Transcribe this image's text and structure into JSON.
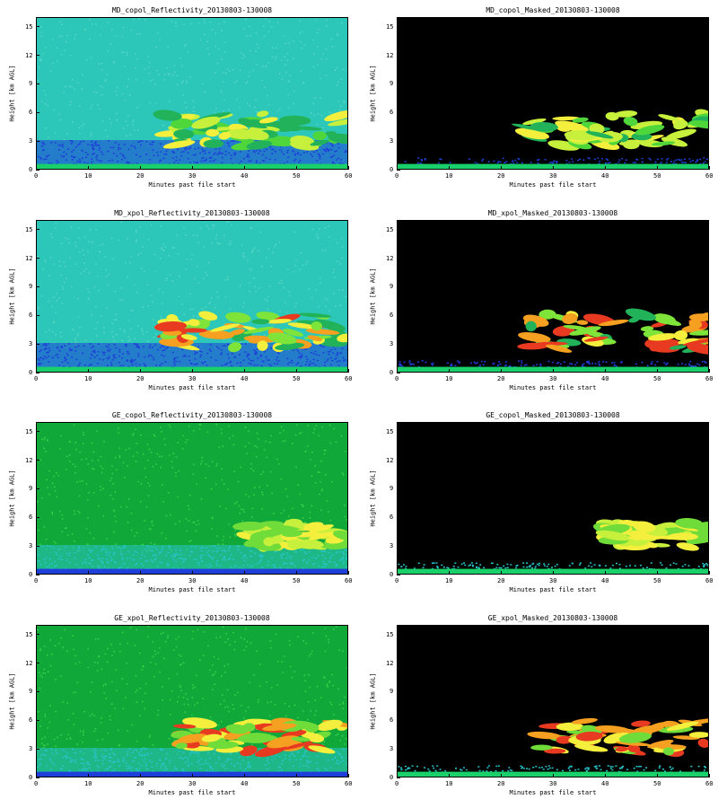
{
  "chart_data": [
    {
      "type": "heatmap",
      "title": "MD_copol_Reflectivity_20130803-130008",
      "xlabel": "Minutes past file start",
      "ylabel": "Height [km AGL]",
      "xlim": [
        0,
        60
      ],
      "ylim": [
        0,
        16
      ],
      "xticks": [
        "0",
        "10",
        "20",
        "30",
        "40",
        "50",
        "60"
      ],
      "yticks": [
        "0",
        "3",
        "6",
        "9",
        "12",
        "15"
      ],
      "background": "#2cc7b8",
      "echo": {
        "start_min": 25,
        "base_km": 2.6,
        "top_km": 6.0,
        "colors": [
          "#22b35a",
          "#4fd63a",
          "#c6f03c",
          "#f4ef3c"
        ]
      },
      "noise": "#1e3fd9",
      "ground": "#19d06a"
    },
    {
      "type": "heatmap",
      "title": "MD_copol_Masked_20130803-130008",
      "xlabel": "Minutes past file start",
      "ylabel": "Height [km AGL]",
      "xlim": [
        0,
        60
      ],
      "ylim": [
        0,
        16
      ],
      "xticks": [
        "0",
        "10",
        "20",
        "30",
        "40",
        "50",
        "60"
      ],
      "yticks": [
        "0",
        "3",
        "6",
        "9",
        "12",
        "15"
      ],
      "background": "#000000",
      "echo": {
        "start_min": 25,
        "base_km": 2.6,
        "top_km": 6.0,
        "colors": [
          "#22b35a",
          "#4fd63a",
          "#c6f03c",
          "#f4ef3c"
        ]
      },
      "noise": "#1e3fd9",
      "ground": "#19d06a"
    },
    {
      "type": "heatmap",
      "title": "MD_xpol_Reflectivity_20130803-130008",
      "xlabel": "Minutes past file start",
      "ylabel": "Height [km AGL]",
      "xlim": [
        0,
        60
      ],
      "ylim": [
        0,
        16
      ],
      "xticks": [
        "0",
        "10",
        "20",
        "30",
        "40",
        "50",
        "60"
      ],
      "yticks": [
        "0",
        "3",
        "6",
        "9",
        "12",
        "15"
      ],
      "background": "#2cc7b8",
      "echo": {
        "start_min": 25,
        "base_km": 2.5,
        "top_km": 6.2,
        "colors": [
          "#22b35a",
          "#7fe43a",
          "#f4ef3c",
          "#f5a020",
          "#e83a20"
        ]
      },
      "noise": "#1e3fd9",
      "ground": "#19d06a"
    },
    {
      "type": "heatmap",
      "title": "MD_xpol_Masked_20130803-130008",
      "xlabel": "Minutes past file start",
      "ylabel": "Height [km AGL]",
      "xlim": [
        0,
        60
      ],
      "ylim": [
        0,
        16
      ],
      "xticks": [
        "0",
        "10",
        "20",
        "30",
        "40",
        "50",
        "60"
      ],
      "yticks": [
        "0",
        "3",
        "6",
        "9",
        "12",
        "15"
      ],
      "background": "#000000",
      "echo": {
        "start_min": 25,
        "base_km": 2.5,
        "top_km": 6.2,
        "colors": [
          "#22b35a",
          "#7fe43a",
          "#f4ef3c",
          "#f5a020",
          "#e83a20"
        ]
      },
      "noise": "#1e3fd9",
      "ground": "#19d06a"
    },
    {
      "type": "heatmap",
      "title": "GE_copol_Reflectivity_20130803-130008",
      "xlabel": "Minutes past file start",
      "ylabel": "Height [km AGL]",
      "xlim": [
        0,
        60
      ],
      "ylim": [
        0,
        16
      ],
      "xticks": [
        "0",
        "10",
        "20",
        "30",
        "40",
        "50",
        "60"
      ],
      "yticks": [
        "0",
        "3",
        "6",
        "9",
        "12",
        "15"
      ],
      "background": "#11a83a",
      "echo": {
        "start_min": 40,
        "base_km": 3.0,
        "top_km": 5.5,
        "colors": [
          "#6fdc3a",
          "#c6f03c",
          "#f4ef3c"
        ]
      },
      "noise": "#29c3c8",
      "ground": "#1e3fd9"
    },
    {
      "type": "heatmap",
      "title": "GE_copol_Masked_20130803-130008",
      "xlabel": "Minutes past file start",
      "ylabel": "Height [km AGL]",
      "xlim": [
        0,
        60
      ],
      "ylim": [
        0,
        16
      ],
      "xticks": [
        "0",
        "10",
        "20",
        "30",
        "40",
        "50",
        "60"
      ],
      "yticks": [
        "0",
        "3",
        "6",
        "9",
        "12",
        "15"
      ],
      "background": "#000000",
      "echo": {
        "start_min": 40,
        "base_km": 3.0,
        "top_km": 5.5,
        "colors": [
          "#6fdc3a",
          "#c6f03c",
          "#f4ef3c"
        ]
      },
      "noise": "#29c3c8",
      "ground": "#19d06a"
    },
    {
      "type": "heatmap",
      "title": "GE_xpol_Reflectivity_20130803-130008",
      "xlabel": "Minutes past file start",
      "ylabel": "Height [km AGL]",
      "xlim": [
        0,
        60
      ],
      "ylim": [
        0,
        16
      ],
      "xticks": [
        "0",
        "10",
        "20",
        "30",
        "40",
        "50",
        "60"
      ],
      "yticks": [
        "0",
        "3",
        "6",
        "9",
        "12",
        "15"
      ],
      "background": "#11a83a",
      "echo": {
        "start_min": 27,
        "base_km": 2.8,
        "top_km": 6.0,
        "colors": [
          "#6fdc3a",
          "#f4ef3c",
          "#f5a020",
          "#e83a20"
        ]
      },
      "noise": "#29c3c8",
      "ground": "#1e3fd9"
    },
    {
      "type": "heatmap",
      "title": "GE_xpol_Masked_20130803-130008",
      "xlabel": "Minutes past file start",
      "ylabel": "Height [km AGL]",
      "xlim": [
        0,
        60
      ],
      "ylim": [
        0,
        16
      ],
      "xticks": [
        "0",
        "10",
        "20",
        "30",
        "40",
        "50",
        "60"
      ],
      "yticks": [
        "0",
        "3",
        "6",
        "9",
        "12",
        "15"
      ],
      "background": "#000000",
      "echo": {
        "start_min": 27,
        "base_km": 2.8,
        "top_km": 6.0,
        "colors": [
          "#6fdc3a",
          "#f4ef3c",
          "#f5a020",
          "#e83a20"
        ]
      },
      "noise": "#29c3c8",
      "ground": "#19d06a"
    }
  ]
}
